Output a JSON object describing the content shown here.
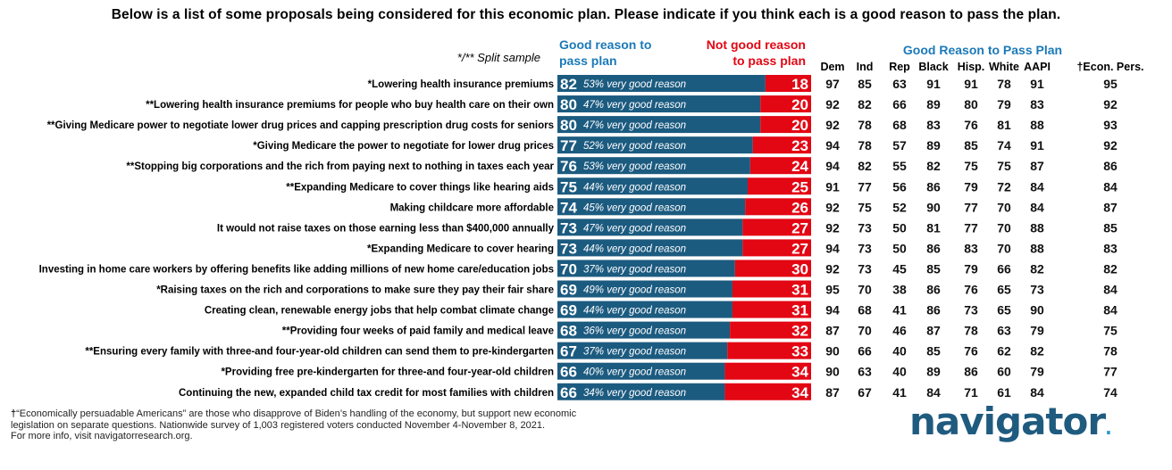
{
  "title": "Below is a list of some proposals being considered for this economic plan. Please indicate if you think each is a good reason to pass the plan.",
  "split_sample_note": "*/** Split sample",
  "chart_data": {
    "type": "bar",
    "good_header": [
      "Good reason to",
      "pass plan"
    ],
    "notgood_header": [
      "Not good reason",
      "to pass plan"
    ],
    "group_header": "Good Reason to Pass Plan",
    "columns": [
      "Dem",
      "Ind",
      "Rep",
      "Black",
      "Hisp.",
      "White",
      "AAPI",
      "†Econ. Pers."
    ],
    "very_good_suffix": "very good reason",
    "colors": {
      "good": "#1c5b80",
      "not_good": "#e30613",
      "header_good": "#1b79b8",
      "header_not_good": "#e30613"
    },
    "rows": [
      {
        "label": "*Lowering health insurance premiums",
        "good": 82,
        "very": "53%",
        "not_good": 18,
        "groups": [
          97,
          85,
          63,
          91,
          91,
          78,
          91,
          95
        ]
      },
      {
        "label": "**Lowering health insurance premiums for people who buy health care on their own",
        "good": 80,
        "very": "47%",
        "not_good": 20,
        "groups": [
          92,
          82,
          66,
          89,
          80,
          79,
          83,
          92
        ]
      },
      {
        "label": "**Giving Medicare power to negotiate lower drug prices and capping prescription drug costs for seniors",
        "good": 80,
        "very": "47%",
        "not_good": 20,
        "groups": [
          92,
          78,
          68,
          83,
          76,
          81,
          88,
          93
        ]
      },
      {
        "label": "*Giving Medicare the power to negotiate for lower drug prices",
        "good": 77,
        "very": "52%",
        "not_good": 23,
        "groups": [
          94,
          78,
          57,
          89,
          85,
          74,
          91,
          92
        ]
      },
      {
        "label": "**Stopping big corporations and the rich from paying next to nothing in taxes each year",
        "good": 76,
        "very": "53%",
        "not_good": 24,
        "groups": [
          94,
          82,
          55,
          82,
          75,
          75,
          87,
          86
        ]
      },
      {
        "label": "**Expanding Medicare to cover things like hearing aids",
        "good": 75,
        "very": "44%",
        "not_good": 25,
        "groups": [
          91,
          77,
          56,
          86,
          79,
          72,
          84,
          84
        ]
      },
      {
        "label": "Making childcare more affordable",
        "good": 74,
        "very": "45%",
        "not_good": 26,
        "groups": [
          92,
          75,
          52,
          90,
          77,
          70,
          84,
          87
        ]
      },
      {
        "label": "It would not raise taxes on those earning less than $400,000 annually",
        "good": 73,
        "very": "47%",
        "not_good": 27,
        "groups": [
          92,
          73,
          50,
          81,
          77,
          70,
          88,
          85
        ]
      },
      {
        "label": "*Expanding Medicare to cover hearing",
        "good": 73,
        "very": "44%",
        "not_good": 27,
        "groups": [
          94,
          73,
          50,
          86,
          83,
          70,
          88,
          83
        ]
      },
      {
        "label": "Investing in home care workers by offering benefits like adding millions of new home care/education jobs",
        "good": 70,
        "very": "37%",
        "not_good": 30,
        "groups": [
          92,
          73,
          45,
          85,
          79,
          66,
          82,
          82
        ]
      },
      {
        "label": "*Raising taxes on the rich and corporations to make sure they pay their fair share",
        "good": 69,
        "very": "49%",
        "not_good": 31,
        "groups": [
          95,
          70,
          38,
          86,
          76,
          65,
          73,
          84
        ]
      },
      {
        "label": "Creating clean, renewable energy jobs that help combat climate change",
        "good": 69,
        "very": "44%",
        "not_good": 31,
        "groups": [
          94,
          68,
          41,
          86,
          73,
          65,
          90,
          84
        ]
      },
      {
        "label": "**Providing four weeks of paid family and medical leave",
        "good": 68,
        "very": "36%",
        "not_good": 32,
        "groups": [
          87,
          70,
          46,
          87,
          78,
          63,
          79,
          75
        ]
      },
      {
        "label": "**Ensuring every family with three-and four-year-old children can send them to pre-kindergarten",
        "good": 67,
        "very": "37%",
        "not_good": 33,
        "groups": [
          90,
          66,
          40,
          85,
          76,
          62,
          82,
          78
        ]
      },
      {
        "label": "*Providing free pre-kindergarten for three-and four-year-old children",
        "good": 66,
        "very": "40%",
        "not_good": 34,
        "groups": [
          90,
          63,
          40,
          89,
          86,
          60,
          79,
          77
        ]
      },
      {
        "label": "Continuing the new, expanded child tax credit for most families with children",
        "good": 66,
        "very": "34%",
        "not_good": 34,
        "groups": [
          87,
          67,
          41,
          84,
          71,
          61,
          84,
          74
        ]
      }
    ]
  },
  "footnote": {
    "dagger": "†",
    "line1": "“Economically persuadable Americans” are those who disapprove of Biden’s handling of the economy, but support new economic",
    "line2": "legislation on separate questions. Nationwide survey of 1,003 registered voters conducted November 4-November 8, 2021.",
    "line3": "For more info, visit navigatorresearch.org."
  },
  "logo": {
    "text": "navigator",
    "dot": "."
  }
}
